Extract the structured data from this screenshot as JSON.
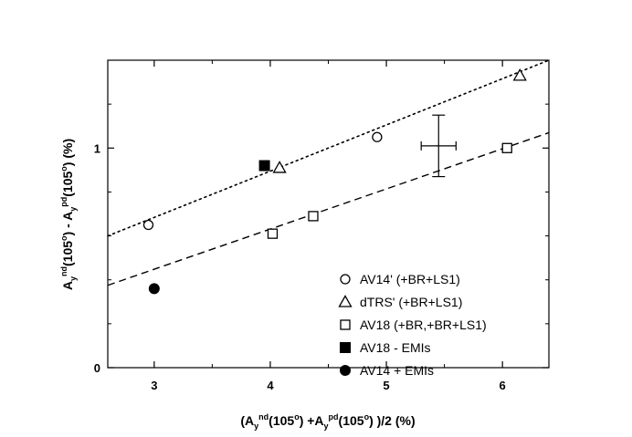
{
  "chart_data": {
    "type": "scatter",
    "xlabel": {
      "parts": [
        {
          "t": "(A",
          "s": "n"
        },
        {
          "t": "y",
          "s": "sub"
        },
        {
          "t": "nd",
          "s": "sup"
        },
        {
          "t": "(105",
          "s": "n"
        },
        {
          "t": "o",
          "s": "sup"
        },
        {
          "t": ") +A",
          "s": "n"
        },
        {
          "t": "y",
          "s": "sub"
        },
        {
          "t": "pd",
          "s": "sup"
        },
        {
          "t": "(105",
          "s": "n"
        },
        {
          "t": "o",
          "s": "sup"
        },
        {
          "t": ") )/2",
          "s": "n"
        },
        {
          "t": "    (%)",
          "s": "n"
        }
      ]
    },
    "ylabel": {
      "parts": [
        {
          "t": "A",
          "s": "n"
        },
        {
          "t": "y",
          "s": "sub"
        },
        {
          "t": "nd",
          "s": "sup"
        },
        {
          "t": "(105",
          "s": "n"
        },
        {
          "t": "o",
          "s": "sup"
        },
        {
          "t": ") - A",
          "s": "n"
        },
        {
          "t": "y",
          "s": "sub"
        },
        {
          "t": "pd",
          "s": "sup"
        },
        {
          "t": "(105",
          "s": "n"
        },
        {
          "t": "o",
          "s": "sup"
        },
        {
          "t": ")  (%)",
          "s": "n"
        }
      ]
    },
    "xlim": [
      2.6,
      6.4
    ],
    "ylim": [
      0,
      1.4
    ],
    "x_ticks": [
      3,
      4,
      5,
      6
    ],
    "x_tick_labels": [
      "3",
      "4",
      "5",
      "6"
    ],
    "x_minor_ticks": [
      3.5,
      4.5,
      5.5
    ],
    "y_ticks": [
      0,
      1
    ],
    "y_tick_labels": [
      "0",
      "1"
    ],
    "y_minor_ticks": [
      0.2,
      0.4,
      0.6,
      0.8,
      1.2
    ],
    "grid": false,
    "legend_position": "bottom-right",
    "series": [
      {
        "name": "AV14' (+BR+LS1)",
        "marker": "circle-open",
        "points": [
          [
            2.95,
            0.65
          ],
          [
            4.92,
            1.05
          ]
        ]
      },
      {
        "name": "dTRS' (+BR+LS1)",
        "marker": "triangle-open",
        "points": [
          [
            4.08,
            0.91
          ],
          [
            6.15,
            1.33
          ]
        ]
      },
      {
        "name": "AV18 (+BR,+BR+LS1)",
        "marker": "square-open",
        "points": [
          [
            4.02,
            0.61
          ],
          [
            4.37,
            0.69
          ],
          [
            6.04,
            1.0
          ]
        ]
      },
      {
        "name": "AV18 - EMIs",
        "marker": "square-filled",
        "points": [
          [
            3.95,
            0.92
          ]
        ]
      },
      {
        "name": "AV14 + EMIs",
        "marker": "circle-filled",
        "points": [
          [
            3.0,
            0.36
          ]
        ]
      }
    ],
    "fit_lines": [
      {
        "style": "dotted",
        "points": [
          [
            2.6,
            0.6
          ],
          [
            6.4,
            1.4
          ]
        ]
      },
      {
        "style": "dashed",
        "points": [
          [
            2.6,
            0.375
          ],
          [
            6.4,
            1.07
          ]
        ]
      }
    ],
    "error_bar": {
      "x": 5.45,
      "y": 1.01,
      "xerr": [
        5.3,
        5.6
      ],
      "yerr": [
        0.87,
        1.15
      ]
    }
  }
}
